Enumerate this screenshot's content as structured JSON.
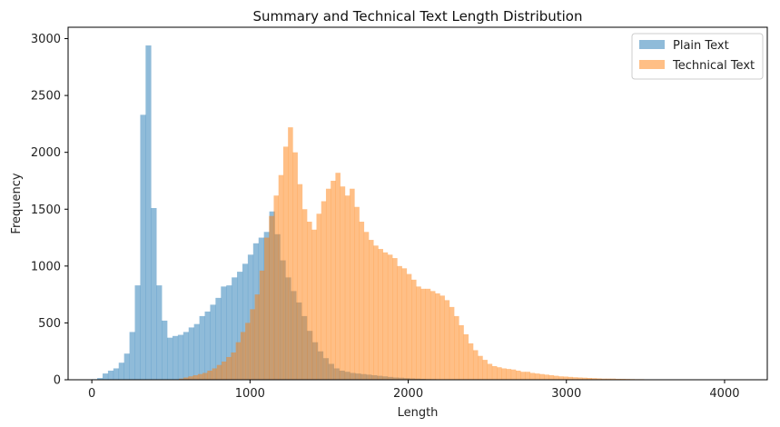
{
  "chart_data": {
    "type": "histogram",
    "title": "Summary and Technical Text Length Distribution",
    "xlabel": "Length",
    "ylabel": "Frequency",
    "xlim": [
      -150,
      4270
    ],
    "ylim": [
      0,
      3100
    ],
    "xticks": [
      0,
      1000,
      2000,
      3000,
      4000
    ],
    "yticks": [
      0,
      500,
      1000,
      1500,
      2000,
      2500,
      3000
    ],
    "grid": false,
    "legend_position": "top-right",
    "series": [
      {
        "name": "Plain Text",
        "color": "#1f77b4",
        "opacity": 0.5,
        "bin_start": 0,
        "bin_width": 34,
        "values": [
          5,
          15,
          55,
          80,
          100,
          150,
          230,
          420,
          830,
          2330,
          2940,
          1510,
          830,
          520,
          370,
          385,
          395,
          420,
          460,
          490,
          560,
          600,
          660,
          720,
          820,
          830,
          900,
          950,
          1020,
          1100,
          1200,
          1250,
          1300,
          1480,
          1280,
          1050,
          900,
          780,
          680,
          560,
          430,
          330,
          250,
          190,
          140,
          100,
          80,
          70,
          60,
          55,
          50,
          45,
          40,
          35,
          30,
          25,
          20,
          18,
          15,
          12,
          10,
          8,
          6,
          5,
          4,
          3,
          2,
          2,
          2,
          1,
          1,
          1
        ]
      },
      {
        "name": "Technical Text",
        "color": "#ff7f0e",
        "opacity": 0.5,
        "bin_start": 550,
        "bin_width": 30,
        "values": [
          10,
          20,
          30,
          40,
          50,
          60,
          80,
          100,
          130,
          160,
          200,
          240,
          330,
          420,
          500,
          620,
          750,
          960,
          1250,
          1440,
          1620,
          1800,
          2050,
          2220,
          2000,
          1720,
          1500,
          1390,
          1320,
          1460,
          1570,
          1680,
          1750,
          1820,
          1700,
          1620,
          1680,
          1520,
          1390,
          1300,
          1230,
          1180,
          1150,
          1120,
          1100,
          1070,
          1000,
          980,
          930,
          880,
          820,
          800,
          800,
          780,
          760,
          740,
          700,
          640,
          560,
          480,
          400,
          320,
          260,
          210,
          175,
          140,
          120,
          110,
          100,
          95,
          90,
          80,
          70,
          70,
          60,
          55,
          50,
          45,
          40,
          35,
          30,
          28,
          25,
          22,
          20,
          18,
          16,
          14,
          12,
          10,
          10,
          10,
          8,
          8,
          7,
          6,
          5,
          5,
          4,
          4,
          3,
          3,
          3,
          3,
          3,
          2,
          2,
          2,
          2,
          2,
          2,
          2,
          2,
          2,
          2,
          2,
          2,
          1,
          1,
          1
        ]
      }
    ]
  }
}
